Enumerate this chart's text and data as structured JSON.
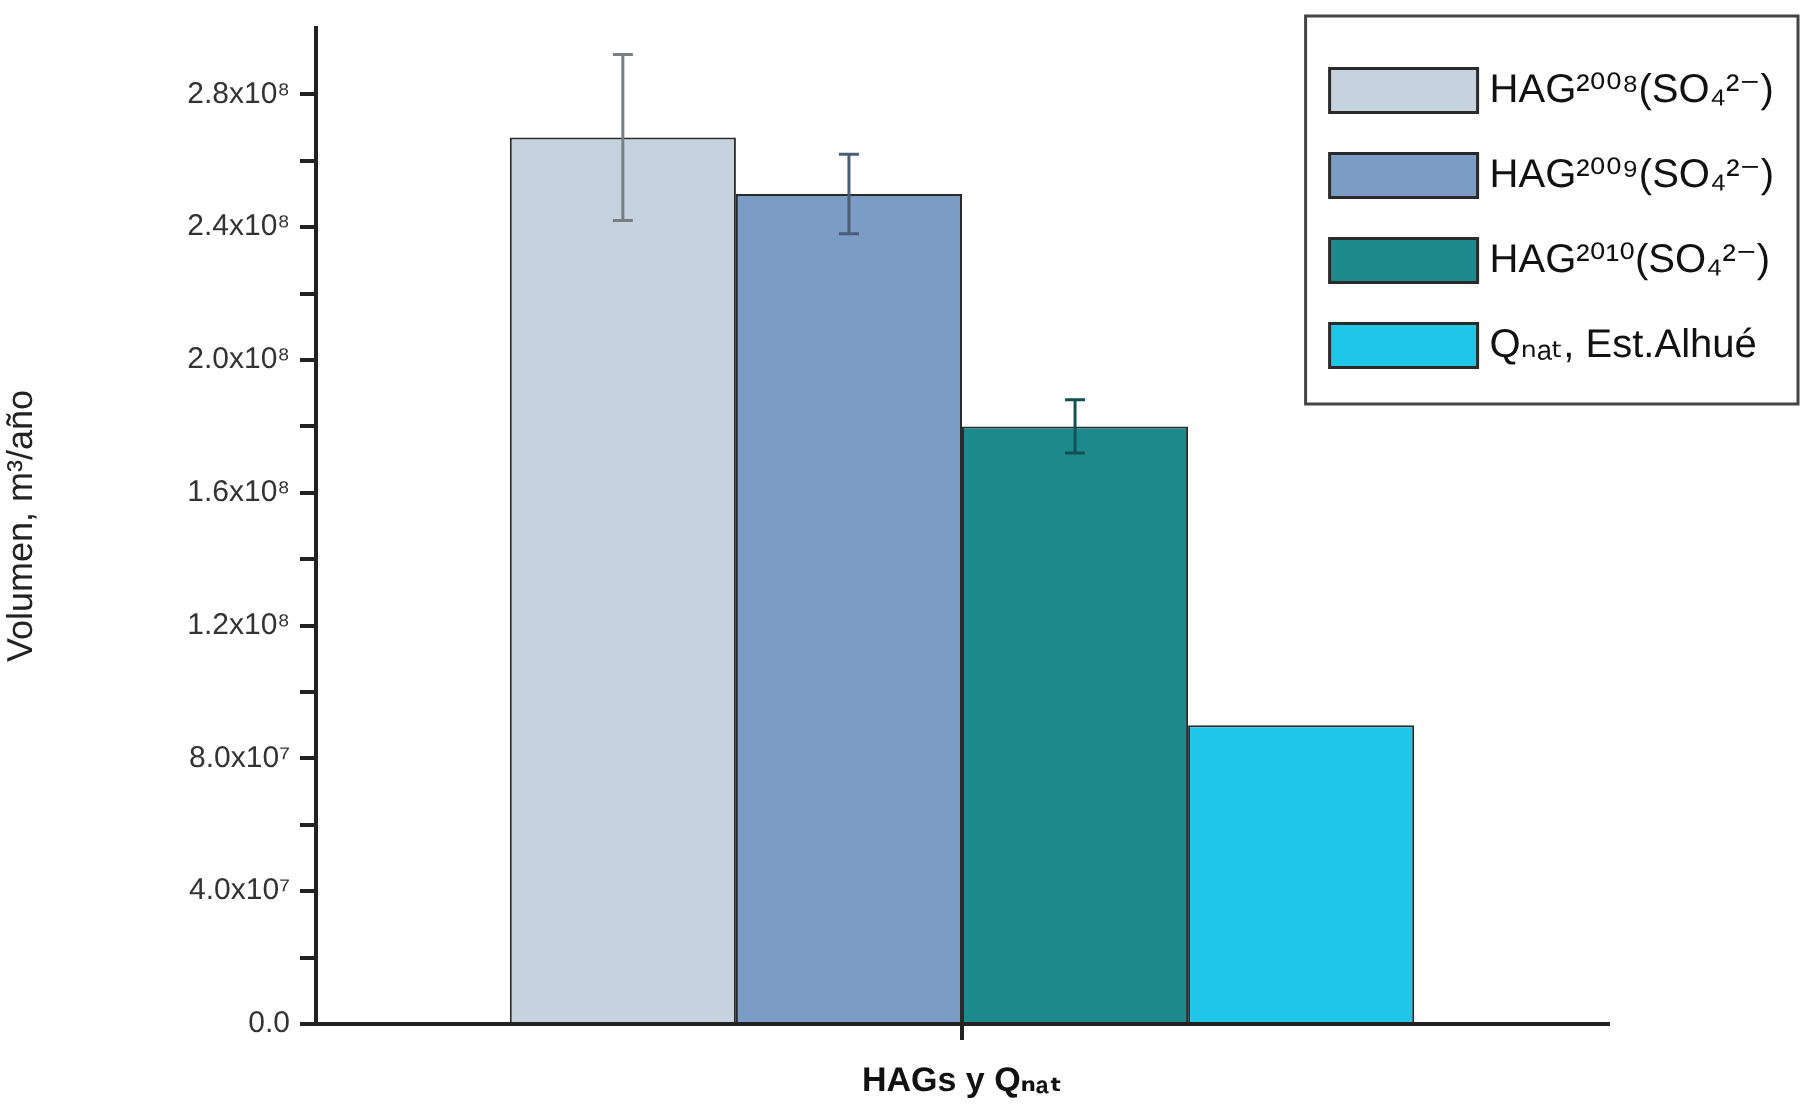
{
  "chart_data": {
    "type": "bar",
    "xlabel": "HAGs y Qₙₐₜ",
    "ylabel": "Volumen, m³/año",
    "categories": [
      null
    ],
    "series": [
      {
        "name": "HAG²⁰⁰⁸(SO₄²⁻)",
        "color": "#c6d3de",
        "values": [
          267000000
        ],
        "errors": [
          25000000
        ]
      },
      {
        "name": "HAG²⁰⁰⁹(SO₄²⁻)",
        "color": "#7b9dc5",
        "values": [
          250000000
        ],
        "errors": [
          12000000
        ]
      },
      {
        "name": "HAG²⁰¹⁰(SO₄²⁻)",
        "color": "#1c8a8c",
        "values": [
          180000000
        ],
        "errors": [
          8000000
        ]
      },
      {
        "name": "Qₙₐₜ, Est.Alhué",
        "color": "#1fc6e8",
        "values": [
          90000000
        ]
      }
    ],
    "ylim": [
      0,
      300000000
    ],
    "yticks": [
      {
        "value": 0,
        "label": "0.0"
      },
      {
        "value": 20000000,
        "label": null
      },
      {
        "value": 40000000,
        "label": "4.0x10⁷"
      },
      {
        "value": 60000000,
        "label": null
      },
      {
        "value": 80000000,
        "label": "8.0x10⁷"
      },
      {
        "value": 100000000,
        "label": null
      },
      {
        "value": 120000000,
        "label": "1.2x10⁸"
      },
      {
        "value": 140000000,
        "label": null
      },
      {
        "value": 160000000,
        "label": "1.6x10⁸"
      },
      {
        "value": 180000000,
        "label": null
      },
      {
        "value": 200000000,
        "label": "2.0x10⁸"
      },
      {
        "value": 220000000,
        "label": null
      },
      {
        "value": 240000000,
        "label": "2.4x10⁸"
      },
      {
        "value": 260000000,
        "label": null
      },
      {
        "value": 280000000,
        "label": "2.8x10⁸"
      }
    ],
    "legend": "top right"
  }
}
